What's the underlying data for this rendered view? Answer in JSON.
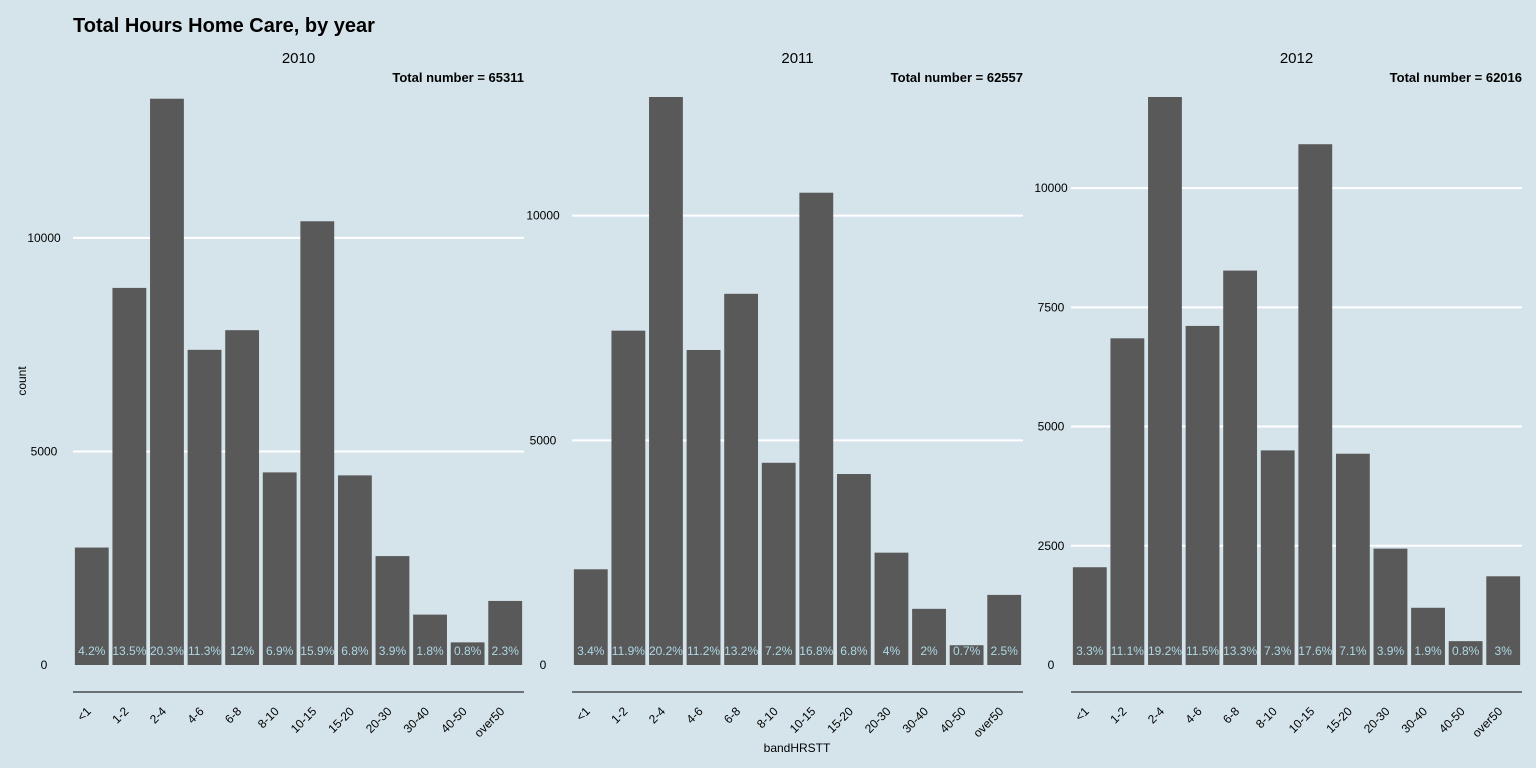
{
  "title": "Total Hours Home Care, by year",
  "colors": {
    "background": "#d5e4eb",
    "bar": "#595959",
    "gridline": "#ffffff",
    "pct_label": "#add8e6",
    "axis_line": "#000000"
  },
  "chart_data": {
    "type": "bar",
    "title": "Total Hours Home Care, by year",
    "xlabel": "bandHRSTT",
    "ylabel": "count",
    "grid": true,
    "categories": [
      "<1",
      "1-2",
      "2-4",
      "4-6",
      "6-8",
      "8-10",
      "10-15",
      "15-20",
      "20-30",
      "30-40",
      "40-50",
      "over50"
    ],
    "facets": [
      {
        "name": "2010",
        "total_label": "Total number = 65311",
        "ylim": [
          0,
          13300
        ],
        "yticks": [
          0,
          5000,
          10000
        ],
        "values": [
          2750,
          8830,
          13260,
          7380,
          7840,
          4510,
          10390,
          4440,
          2550,
          1180,
          530,
          1500
        ],
        "pct_labels": [
          "4.2%",
          "13.5%",
          "20.3%",
          "11.3%",
          "12%",
          "6.9%",
          "15.9%",
          "6.8%",
          "3.9%",
          "1.8%",
          "0.8%",
          "2.3%"
        ]
      },
      {
        "name": "2011",
        "total_label": "Total number = 62557",
        "ylim": [
          0,
          12640
        ],
        "yticks": [
          0,
          5000,
          10000
        ],
        "values": [
          2130,
          7440,
          12640,
          7010,
          8260,
          4500,
          10510,
          4250,
          2500,
          1250,
          440,
          1560
        ],
        "pct_labels": [
          "3.4%",
          "11.9%",
          "20.2%",
          "11.2%",
          "13.2%",
          "7.2%",
          "16.8%",
          "6.8%",
          "4%",
          "2%",
          "0.7%",
          "2.5%"
        ]
      },
      {
        "name": "2012",
        "total_label": "Total number = 62016",
        "ylim": [
          0,
          11910
        ],
        "yticks": [
          0,
          2500,
          5000,
          7500,
          10000
        ],
        "values": [
          2050,
          6850,
          11910,
          7110,
          8270,
          4500,
          10920,
          4430,
          2440,
          1200,
          500,
          1860
        ],
        "pct_labels": [
          "3.3%",
          "11.1%",
          "19.2%",
          "11.5%",
          "13.3%",
          "7.3%",
          "17.6%",
          "7.1%",
          "3.9%",
          "1.9%",
          "0.8%",
          "3%"
        ]
      }
    ]
  }
}
